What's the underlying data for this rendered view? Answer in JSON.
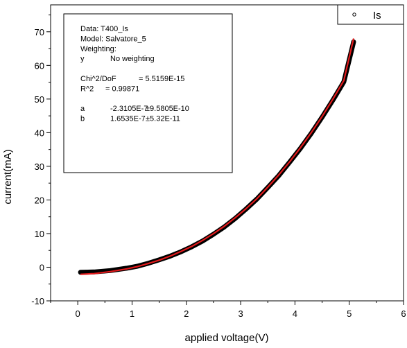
{
  "chart_data": {
    "type": "scatter",
    "xlabel": "applied voltage(V)",
    "ylabel": "current(mA)",
    "xlim": [
      -0.5,
      6
    ],
    "ylim": [
      -10,
      78
    ],
    "xticks": [
      0,
      1,
      2,
      3,
      4,
      5,
      6
    ],
    "yticks": [
      -10,
      0,
      10,
      20,
      30,
      40,
      50,
      60,
      70
    ],
    "grid": false,
    "legend": {
      "position": "top-right",
      "entries": [
        {
          "label": "Is",
          "marker": "circle"
        }
      ]
    },
    "series": [
      {
        "name": "Is",
        "kind": "scatter",
        "color": "#000000",
        "x": [
          0.05,
          0.3,
          0.6,
          0.9,
          1.1,
          1.3,
          1.5,
          1.7,
          1.9,
          2.1,
          2.3,
          2.5,
          2.7,
          2.9,
          3.1,
          3.3,
          3.5,
          3.7,
          3.9,
          4.1,
          4.3,
          4.5,
          4.7,
          4.9,
          5.08
        ],
        "y": [
          -1.5,
          -1.4,
          -1.0,
          -0.3,
          0.3,
          1.2,
          2.2,
          3.3,
          4.6,
          6.1,
          7.8,
          9.8,
          12.0,
          14.5,
          17.3,
          20.3,
          23.7,
          27.2,
          31.2,
          35.3,
          39.8,
          44.6,
          49.7,
          55.1,
          67.0
        ]
      },
      {
        "name": "",
        "kind": "line",
        "color": "#e31a1c",
        "x": [
          0.05,
          0.3,
          0.6,
          0.9,
          1.1,
          1.3,
          1.5,
          1.7,
          1.9,
          2.1,
          2.3,
          2.5,
          2.7,
          2.9,
          3.1,
          3.3,
          3.5,
          3.7,
          3.9,
          4.1,
          4.3,
          4.5,
          4.7,
          4.9,
          5.08
        ],
        "y": [
          -2.1,
          -1.9,
          -1.3,
          -0.5,
          0.2,
          1.1,
          2.1,
          3.3,
          4.7,
          6.2,
          8.0,
          10.0,
          12.2,
          14.7,
          17.4,
          20.4,
          23.8,
          27.4,
          31.3,
          35.5,
          40.0,
          44.8,
          50.0,
          55.5,
          68.0
        ]
      }
    ],
    "annotation": {
      "lines": [
        [
          "Data: T400_Is"
        ],
        [
          "Model: Salvatore_5"
        ],
        [
          "Weighting:"
        ],
        [
          "y",
          "No weighting"
        ],
        [
          ""
        ],
        [
          "Chi^2/DoF",
          "= 5.5159E-15"
        ],
        [
          "R^2",
          "= 0.99871"
        ],
        [
          ""
        ],
        [
          "a",
          "-2.3105E-7",
          "±9.5805E-10"
        ],
        [
          "b",
          "1.6535E-7",
          "±5.32E-11"
        ]
      ]
    }
  }
}
